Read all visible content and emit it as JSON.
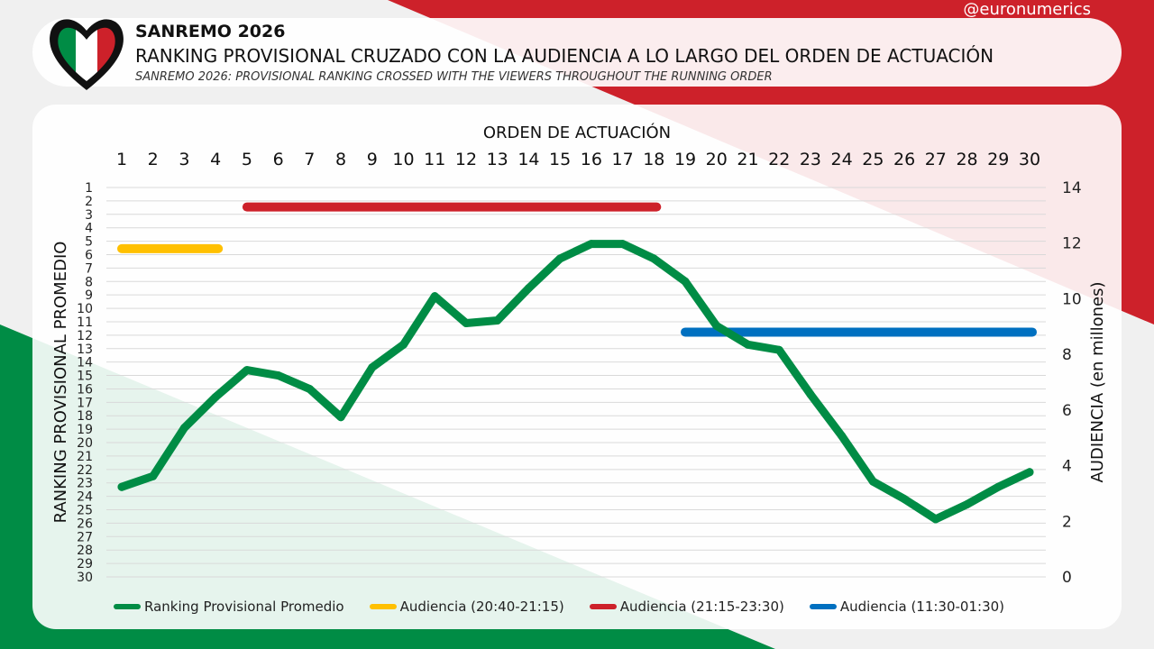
{
  "header": {
    "title": "SANREMO 2026",
    "subtitle": "RANKING PROVISIONAL CRUZADO CON LA AUDIENCIA A LO LARGO DEL ORDEN DE ACTUACIÓN",
    "subtitle_en": "SANREMO 2026: PROVISIONAL RANKING CROSSED WITH THE VIEWERS THROUGHOUT THE RUNNING ORDER",
    "handle": "@euronumerics"
  },
  "colors": {
    "green": "#008c45",
    "yellow": "#ffc000",
    "red": "#cd212a",
    "blue": "#0070c0"
  },
  "chart_data": {
    "type": "line",
    "xlabel": "ORDEN DE ACTUACIÓN",
    "ylabel": "RANKING PROVISIONAL PROMEDIO",
    "y2label": "AUDIENCIA (en millones)",
    "x": [
      1,
      2,
      3,
      4,
      5,
      6,
      7,
      8,
      9,
      10,
      11,
      12,
      13,
      14,
      15,
      16,
      17,
      18,
      19,
      20,
      21,
      22,
      23,
      24,
      25,
      26,
      27,
      28,
      29,
      30
    ],
    "ylim": [
      30,
      1
    ],
    "y2lim": [
      0,
      14
    ],
    "y2ticks": [
      0,
      2,
      4,
      6,
      8,
      10,
      12,
      14
    ],
    "series": [
      {
        "name": "Ranking Provisional Promedio",
        "axis": "left",
        "color": "#008c45",
        "values": [
          23.3,
          22.5,
          18.9,
          16.6,
          14.6,
          15.0,
          16.0,
          18.1,
          14.4,
          12.7,
          9.1,
          11.1,
          10.9,
          8.5,
          6.3,
          5.2,
          5.2,
          6.3,
          8.0,
          11.3,
          12.7,
          13.1,
          16.4,
          19.5,
          22.9,
          24.2,
          25.7,
          24.6,
          23.3,
          22.2
        ]
      },
      {
        "name": "Audiencia (20:40-21:15)",
        "axis": "right",
        "color": "#ffc000",
        "from": 1,
        "to": 4,
        "value": 11.8
      },
      {
        "name": "Audiencia (21:15-23:30)",
        "axis": "right",
        "color": "#cd212a",
        "from": 5,
        "to": 18,
        "value": 13.3
      },
      {
        "name": "Audiencia (11:30-01:30)",
        "axis": "right",
        "color": "#0070c0",
        "from": 19,
        "to": 30,
        "value": 8.8
      }
    ],
    "legend": "bottom",
    "grid": true
  }
}
